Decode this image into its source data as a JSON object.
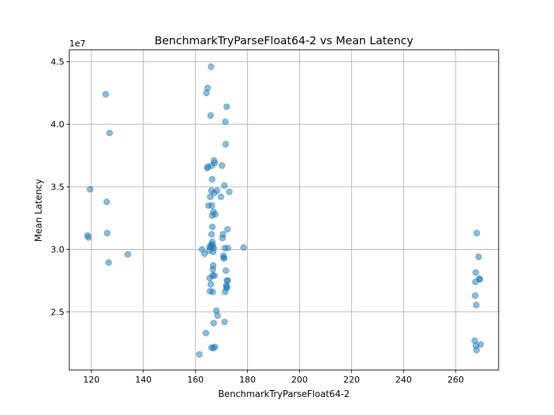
{
  "chart_data": {
    "type": "scatter",
    "title": "BenchmarkTryParseFloat64-2 vs Mean Latency",
    "xlabel": "BenchmarkTryParseFloat64-2",
    "ylabel": "Mean Latency",
    "y_offset_text": "1e7",
    "xlim": [
      111.5,
      276.5
    ],
    "ylim": [
      20.35,
      45.95
    ],
    "x_ticks": [
      120,
      140,
      160,
      180,
      200,
      220,
      240,
      260
    ],
    "x_tick_labels": [
      "120",
      "140",
      "160",
      "180",
      "200",
      "220",
      "240",
      "260"
    ],
    "y_ticks": [
      25,
      30,
      35,
      40,
      45
    ],
    "y_tick_labels": [
      "2.5",
      "3.0",
      "3.5",
      "4.0",
      "4.5"
    ],
    "y_scale": 1000000,
    "grid": true,
    "marker_color": "#1f77b4",
    "marker_alpha": 0.5,
    "points": [
      [
        118.5,
        31.1
      ],
      [
        118.9,
        30.95
      ],
      [
        119.5,
        34.8
      ],
      [
        125.5,
        42.4
      ],
      [
        125.9,
        33.8
      ],
      [
        126.1,
        31.3
      ],
      [
        126.6,
        28.95
      ],
      [
        127.0,
        39.3
      ],
      [
        134.0,
        29.6
      ],
      [
        161.5,
        21.6
      ],
      [
        162.5,
        30.0
      ],
      [
        163.5,
        29.65
      ],
      [
        164.0,
        23.3
      ],
      [
        164.2,
        42.5
      ],
      [
        164.5,
        36.5
      ],
      [
        164.7,
        42.9
      ],
      [
        164.8,
        36.6
      ],
      [
        165.0,
        33.5
      ],
      [
        165.3,
        29.9
      ],
      [
        165.4,
        30.2
      ],
      [
        165.5,
        27.7
      ],
      [
        165.6,
        26.65
      ],
      [
        165.7,
        34.2
      ],
      [
        165.8,
        40.7
      ],
      [
        165.9,
        27.2
      ],
      [
        166.0,
        44.6
      ],
      [
        166.1,
        34.7
      ],
      [
        166.2,
        31.2
      ],
      [
        166.3,
        33.5
      ],
      [
        166.4,
        32.7
      ],
      [
        166.5,
        30.6
      ],
      [
        166.6,
        27.9
      ],
      [
        166.7,
        28.4
      ],
      [
        166.8,
        28.7
      ],
      [
        166.9,
        22.1
      ],
      [
        167.0,
        30.1
      ],
      [
        166.3,
        36.7
      ],
      [
        166.4,
        35.6
      ],
      [
        166.5,
        31.8
      ],
      [
        166.6,
        26.6
      ],
      [
        166.0,
        30.2
      ],
      [
        166.1,
        30.4
      ],
      [
        166.2,
        22.15
      ],
      [
        166.7,
        30.3
      ],
      [
        166.8,
        29.8
      ],
      [
        166.9,
        33.0
      ],
      [
        167.0,
        24.1
      ],
      [
        167.1,
        37.1
      ],
      [
        167.2,
        34.5
      ],
      [
        167.3,
        27.9
      ],
      [
        167.4,
        36.9
      ],
      [
        167.5,
        22.2
      ],
      [
        167.6,
        32.8
      ],
      [
        168.0,
        25.1
      ],
      [
        168.3,
        34.7
      ],
      [
        168.5,
        24.7
      ],
      [
        169.8,
        34.2
      ],
      [
        170.2,
        36.7
      ],
      [
        170.4,
        30.9
      ],
      [
        170.6,
        31.2
      ],
      [
        170.8,
        29.5
      ],
      [
        170.9,
        29.3
      ],
      [
        171.0,
        29.3
      ],
      [
        171.1,
        35.1
      ],
      [
        171.2,
        24.2
      ],
      [
        171.3,
        30.1
      ],
      [
        171.4,
        26.6
      ],
      [
        171.5,
        40.2
      ],
      [
        171.6,
        38.4
      ],
      [
        171.7,
        28.3
      ],
      [
        171.8,
        27.1
      ],
      [
        171.9,
        26.9
      ],
      [
        172.0,
        41.4
      ],
      [
        172.1,
        27.5
      ],
      [
        172.2,
        27.0
      ],
      [
        172.3,
        31.6
      ],
      [
        172.4,
        27.5
      ],
      [
        172.5,
        30.1
      ],
      [
        173.0,
        34.6
      ],
      [
        178.5,
        30.15
      ],
      [
        267.3,
        22.7
      ],
      [
        267.5,
        26.3
      ],
      [
        267.6,
        27.4
      ],
      [
        267.7,
        28.15
      ],
      [
        267.8,
        22.3
      ],
      [
        267.9,
        25.55
      ],
      [
        268.0,
        21.95
      ],
      [
        268.1,
        31.3
      ],
      [
        268.8,
        29.4
      ],
      [
        269.1,
        27.65
      ],
      [
        269.3,
        27.6
      ],
      [
        269.6,
        22.4
      ]
    ]
  }
}
